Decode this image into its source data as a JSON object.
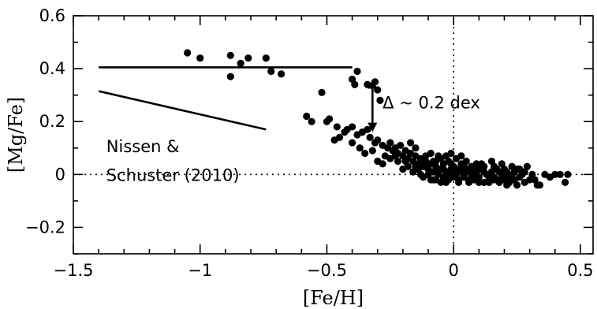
{
  "chart_data": {
    "type": "scatter",
    "title": "",
    "xlabel": "[Fe/H]",
    "ylabel": "[Mg/Fe]",
    "xlim": [
      -1.5,
      0.55
    ],
    "ylim": [
      -0.3,
      0.6
    ],
    "xticks": [
      -1.5,
      -1,
      -0.5,
      0,
      0.5
    ],
    "xtick_labels": [
      "−1.5",
      "−1",
      "−0.5",
      "0",
      "0.5"
    ],
    "yticks": [
      -0.2,
      0,
      0.2,
      0.4,
      0.6
    ],
    "ytick_labels": [
      "−0.2",
      "0",
      "0.2",
      "0.4",
      "0.6"
    ],
    "grid": false,
    "reference_lines": [
      {
        "orientation": "horizontal",
        "value": 0,
        "style": "dotted"
      },
      {
        "orientation": "vertical",
        "value": 0,
        "style": "dotted"
      }
    ],
    "trend_lines": [
      {
        "x": [
          -1.4,
          -0.4
        ],
        "y": [
          0.405,
          0.405
        ]
      },
      {
        "x": [
          -1.4,
          -0.74
        ],
        "y": [
          0.315,
          0.17
        ]
      }
    ],
    "annotations": [
      {
        "text": "Δ ~ 0.2 dex",
        "x": -0.28,
        "y": 0.25
      },
      {
        "text": "Nissen &",
        "x": -1.37,
        "y": 0.085
      },
      {
        "text": "Schuster (2010)",
        "x": -1.37,
        "y": -0.025
      }
    ],
    "arrow": {
      "x": -0.32,
      "y_from": 0.36,
      "y_to": 0.16
    },
    "points": [
      [
        -1.05,
        0.46
      ],
      [
        -1.0,
        0.44
      ],
      [
        -0.88,
        0.45
      ],
      [
        -0.84,
        0.42
      ],
      [
        -0.81,
        0.44
      ],
      [
        -0.74,
        0.44
      ],
      [
        -0.72,
        0.39
      ],
      [
        -0.88,
        0.37
      ],
      [
        -0.68,
        0.38
      ],
      [
        -0.38,
        0.39
      ],
      [
        -0.34,
        0.34
      ],
      [
        -0.4,
        0.36
      ],
      [
        -0.39,
        0.34
      ],
      [
        -0.31,
        0.35
      ],
      [
        -0.3,
        0.32
      ],
      [
        -0.29,
        0.28
      ],
      [
        -0.52,
        0.31
      ],
      [
        -0.58,
        0.22
      ],
      [
        -0.56,
        0.2
      ],
      [
        -0.5,
        0.2
      ],
      [
        -0.49,
        0.21
      ],
      [
        -0.46,
        0.18
      ],
      [
        -0.43,
        0.16
      ],
      [
        -0.42,
        0.17
      ],
      [
        -0.4,
        0.18
      ],
      [
        -0.38,
        0.15
      ],
      [
        -0.36,
        0.16
      ],
      [
        -0.34,
        0.17
      ],
      [
        -0.33,
        0.14
      ],
      [
        -0.31,
        0.12
      ],
      [
        -0.3,
        0.13
      ],
      [
        -0.28,
        0.11
      ],
      [
        -0.26,
        0.1
      ],
      [
        -0.25,
        0.12
      ],
      [
        -0.24,
        0.09
      ],
      [
        -0.23,
        0.1
      ],
      [
        -0.22,
        0.08
      ],
      [
        -0.21,
        0.11
      ],
      [
        -0.2,
        0.07
      ],
      [
        -0.19,
        0.09
      ],
      [
        -0.18,
        0.06
      ],
      [
        -0.17,
        0.08
      ],
      [
        -0.16,
        0.05
      ],
      [
        -0.15,
        0.07
      ],
      [
        -0.14,
        0.04
      ],
      [
        -0.13,
        0.06
      ],
      [
        -0.12,
        0.03
      ],
      [
        -0.11,
        0.05
      ],
      [
        -0.1,
        0.02
      ],
      [
        -0.09,
        0.04
      ],
      [
        -0.08,
        0.01
      ],
      [
        -0.07,
        0.03
      ],
      [
        -0.06,
        0.0
      ],
      [
        -0.05,
        0.02
      ],
      [
        -0.04,
        0.04
      ],
      [
        -0.03,
        0.01
      ],
      [
        -0.02,
        0.05
      ],
      [
        -0.01,
        0.02
      ],
      [
        0.0,
        -0.01
      ],
      [
        -0.47,
        0.13
      ],
      [
        -0.45,
        0.14
      ],
      [
        -0.4,
        0.12
      ],
      [
        -0.37,
        0.1
      ],
      [
        -0.35,
        0.08
      ],
      [
        -0.32,
        0.09
      ],
      [
        -0.3,
        0.05
      ],
      [
        -0.27,
        0.07
      ],
      [
        -0.22,
        0.05
      ],
      [
        -0.18,
        0.03
      ],
      [
        -0.16,
        0.01
      ],
      [
        -0.14,
        0.02
      ],
      [
        -0.12,
        -0.01
      ],
      [
        -0.1,
        0.0
      ],
      [
        -0.08,
        -0.02
      ],
      [
        -0.06,
        0.01
      ],
      [
        -0.04,
        -0.01
      ],
      [
        -0.03,
        -0.03
      ],
      [
        -0.02,
        0.0
      ],
      [
        -0.17,
        0.12
      ],
      [
        -0.15,
        0.1
      ],
      [
        -0.09,
        0.08
      ],
      [
        -0.05,
        0.06
      ],
      [
        -0.03,
        0.07
      ],
      [
        -0.08,
        0.05
      ],
      [
        -0.11,
        0.07
      ],
      [
        -0.01,
        0.04
      ],
      [
        0.01,
        0.06
      ],
      [
        0.03,
        0.04
      ],
      [
        0.05,
        0.05
      ],
      [
        0.07,
        0.03
      ],
      [
        0.09,
        0.04
      ],
      [
        0.01,
        0.0
      ],
      [
        0.02,
        -0.02
      ],
      [
        0.03,
        0.01
      ],
      [
        0.04,
        -0.01
      ],
      [
        0.05,
        0.02
      ],
      [
        0.06,
        -0.03
      ],
      [
        0.07,
        0.0
      ],
      [
        0.08,
        -0.02
      ],
      [
        0.09,
        0.01
      ],
      [
        0.1,
        -0.01
      ],
      [
        0.11,
        0.02
      ],
      [
        0.12,
        -0.03
      ],
      [
        0.13,
        0.0
      ],
      [
        0.14,
        -0.02
      ],
      [
        0.15,
        0.01
      ],
      [
        0.16,
        -0.01
      ],
      [
        0.17,
        0.02
      ],
      [
        0.18,
        -0.03
      ],
      [
        0.19,
        0.0
      ],
      [
        0.2,
        -0.02
      ],
      [
        0.21,
        0.01
      ],
      [
        0.22,
        -0.01
      ],
      [
        0.23,
        0.0
      ],
      [
        0.24,
        -0.02
      ],
      [
        0.25,
        0.02
      ],
      [
        0.26,
        -0.01
      ],
      [
        0.27,
        0.0
      ],
      [
        0.28,
        -0.03
      ],
      [
        -0.07,
        -0.02
      ],
      [
        -0.05,
        -0.03
      ],
      [
        -0.02,
        -0.02
      ],
      [
        0.0,
        0.03
      ],
      [
        0.02,
        0.02
      ],
      [
        0.04,
        0.03
      ],
      [
        0.06,
        0.01
      ],
      [
        0.08,
        0.0
      ],
      [
        0.1,
        0.02
      ],
      [
        0.12,
        0.01
      ],
      [
        0.14,
        0.0
      ],
      [
        0.16,
        0.03
      ],
      [
        0.18,
        0.01
      ],
      [
        0.2,
        0.02
      ],
      [
        0.22,
        -0.03
      ],
      [
        0.24,
        0.01
      ],
      [
        0.26,
        0.02
      ],
      [
        0.28,
        0.01
      ],
      [
        0.3,
        -0.02
      ],
      [
        0.31,
        0.0
      ],
      [
        0.32,
        -0.02
      ],
      [
        0.33,
        -0.04
      ],
      [
        0.34,
        -0.04
      ],
      [
        0.36,
        0.0
      ],
      [
        0.38,
        -0.01
      ],
      [
        0.4,
        0.0
      ],
      [
        0.42,
        0.0
      ],
      [
        0.44,
        -0.03
      ],
      [
        0.45,
        0.0
      ],
      [
        -0.25,
        0.06
      ],
      [
        -0.2,
        0.02
      ],
      [
        -0.13,
        0.0
      ],
      [
        -0.09,
        -0.02
      ],
      [
        -0.06,
        0.07
      ],
      [
        -0.01,
        0.08
      ],
      [
        0.03,
        0.07
      ],
      [
        0.11,
        0.04
      ],
      [
        0.15,
        0.05
      ],
      [
        0.19,
        0.04
      ],
      [
        0.23,
        0.03
      ],
      [
        0.29,
        0.03
      ],
      [
        0.02,
        -0.03
      ],
      [
        0.06,
        -0.02
      ],
      [
        0.1,
        -0.03
      ],
      [
        0.14,
        -0.03
      ],
      [
        0.18,
        -0.02
      ],
      [
        0.21,
        -0.04
      ],
      [
        0.25,
        -0.04
      ],
      [
        -0.15,
        0.03
      ],
      [
        -0.12,
        0.04
      ],
      [
        -0.07,
        0.05
      ],
      [
        -0.04,
        0.02
      ],
      [
        0.0,
        0.01
      ],
      [
        0.04,
        0.0
      ],
      [
        0.08,
        0.02
      ],
      [
        0.12,
        0.03
      ],
      [
        0.16,
        -0.02
      ],
      [
        0.2,
        -0.01
      ],
      [
        -0.28,
        0.04
      ],
      [
        -0.23,
        0.07
      ],
      [
        -0.19,
        0.05
      ],
      [
        -0.11,
        0.03
      ]
    ]
  }
}
